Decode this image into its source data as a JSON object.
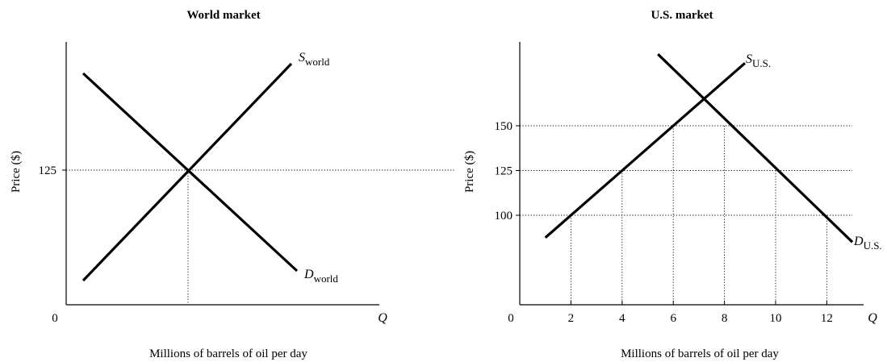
{
  "chart_data": [
    {
      "type": "line",
      "title": "World market",
      "ylabel": "Price ($)",
      "xlabel": "Millions of barrels of oil per day",
      "origin_label": "0",
      "q_label": "Q",
      "y_ticks": [
        125
      ],
      "x_ticks": [],
      "equilibrium": {
        "price": 125
      },
      "series": [
        {
          "name": "S",
          "subscript": "world",
          "kind": "supply"
        },
        {
          "name": "D",
          "subscript": "world",
          "kind": "demand"
        }
      ]
    },
    {
      "type": "line",
      "title": "U.S. market",
      "ylabel": "Price ($)",
      "xlabel": "Millions of barrels of oil per day",
      "origin_label": "0",
      "q_label": "Q",
      "xlim": [
        0,
        14.6
      ],
      "ylim": [
        50,
        195
      ],
      "x_ticks": [
        2,
        4,
        6,
        8,
        10,
        12
      ],
      "y_ticks": [
        100,
        125,
        150
      ],
      "series": [
        {
          "name": "S",
          "subscript": "U.S.",
          "kind": "supply",
          "x": [
            1,
            8.8
          ],
          "y": [
            87.5,
            185
          ]
        },
        {
          "name": "D",
          "subscript": "U.S.",
          "kind": "demand",
          "x": [
            5.4,
            13
          ],
          "y": [
            190,
            85
          ]
        }
      ],
      "guides": [
        {
          "x": 2,
          "y": 100
        },
        {
          "x": 4,
          "y": 125
        },
        {
          "x": 6,
          "y": 150
        },
        {
          "x": 8,
          "y": 150
        },
        {
          "x": 10,
          "y": 125
        },
        {
          "x": 12,
          "y": 100
        }
      ]
    }
  ]
}
